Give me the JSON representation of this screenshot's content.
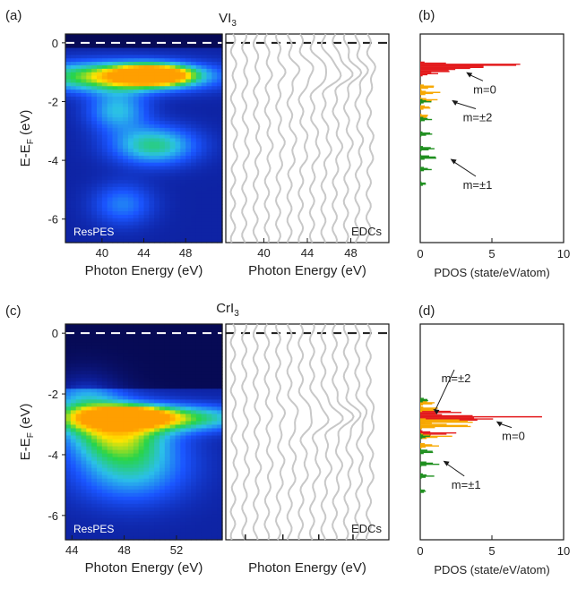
{
  "figure": {
    "colors": {
      "axis": "#1a1a1a",
      "edc": "#c8c8c8",
      "ef_dashes": "#ffffff",
      "m0": "#e31a1c",
      "m2": "#f7a800",
      "m1": "#1e8f1e"
    },
    "colormap": [
      "#070a55",
      "#0d1f9c",
      "#1a55ff",
      "#2bc0e8",
      "#27d44a",
      "#ffe400",
      "#ff9f00"
    ]
  },
  "chart_data": [
    {
      "id": "a",
      "panel_label": "(a)",
      "type": "heatmap",
      "title": "VI",
      "title_sub": "3",
      "inset_label": "ResPES",
      "xlabel": "Photon Energy (eV)",
      "ylabel": "E-E",
      "ylabel_sub": "F",
      "ylabel_unit": " (eV)",
      "xlim": [
        36.5,
        51.5
      ],
      "ylim": [
        -6.8,
        0.3
      ],
      "xticks": [
        40,
        44,
        48
      ],
      "yticks": [
        0,
        -2,
        -4,
        -6
      ],
      "fermi_level": 0,
      "features": [
        {
          "center": [
            44.8,
            -1.1
          ],
          "peak": 1.0,
          "width": [
            2.4,
            0.22
          ]
        },
        {
          "center": [
            41.5,
            -1.15
          ],
          "peak": 0.62,
          "width": [
            6,
            0.35
          ]
        },
        {
          "center": [
            45.0,
            -3.5
          ],
          "peak": 0.42,
          "width": [
            2.8,
            0.45
          ]
        },
        {
          "center": [
            41.5,
            -2.3
          ],
          "peak": 0.32,
          "width": [
            2,
            0.5
          ]
        },
        {
          "center": [
            42.0,
            -5.5
          ],
          "peak": 0.22,
          "width": [
            2,
            0.5
          ]
        }
      ]
    },
    {
      "id": "a-edc",
      "type": "line",
      "inset_label": "EDCs",
      "xlabel": "Photon Energy (eV)",
      "xticks": [
        40,
        44,
        48
      ],
      "xlim": [
        36.5,
        51.5
      ],
      "ylim": [
        -6.8,
        0.3
      ],
      "curve_count": 13,
      "peaks": [
        -1.0,
        -3.5
      ]
    },
    {
      "id": "b",
      "panel_label": "(b)",
      "type": "line",
      "xlabel": "PDOS (state/eV/atom)",
      "xlim": [
        0,
        10
      ],
      "ylim": [
        -6.8,
        0.3
      ],
      "xticks": [
        0,
        5,
        10
      ],
      "series": [
        {
          "name": "m=0",
          "color": "#e31a1c",
          "peaks": [
            {
              "e": -0.75,
              "v": 8.6
            },
            {
              "e": -0.85,
              "v": 4.8
            },
            {
              "e": -0.95,
              "v": 2.6
            },
            {
              "e": -1.05,
              "v": 1.2
            }
          ]
        },
        {
          "name": "m=±2",
          "color": "#f7a800",
          "peaks": [
            {
              "e": -1.5,
              "v": 1.3
            },
            {
              "e": -1.7,
              "v": 1.5
            },
            {
              "e": -1.95,
              "v": 1.35
            },
            {
              "e": -2.2,
              "v": 0.9
            },
            {
              "e": -2.5,
              "v": 0.8
            }
          ]
        },
        {
          "name": "m=±1",
          "color": "#1e8f1e",
          "peaks": [
            {
              "e": -2.0,
              "v": 0.8
            },
            {
              "e": -2.6,
              "v": 0.9
            },
            {
              "e": -3.1,
              "v": 1.0
            },
            {
              "e": -3.6,
              "v": 1.2
            },
            {
              "e": -3.9,
              "v": 1.5
            },
            {
              "e": -4.3,
              "v": 0.9
            },
            {
              "e": -4.8,
              "v": 0.5
            }
          ]
        }
      ],
      "annotations": [
        {
          "text": "m=0",
          "e": -1.6,
          "v": 4.5,
          "target_e": -1.0,
          "target_v": 3.2
        },
        {
          "text": "m=±2",
          "e": -2.55,
          "v": 4.0,
          "target_e": -1.95,
          "target_v": 2.2
        },
        {
          "text": "m=±1",
          "e": -4.85,
          "v": 4.0,
          "target_e": -3.95,
          "target_v": 2.1
        }
      ]
    },
    {
      "id": "c",
      "panel_label": "(c)",
      "type": "heatmap",
      "title": "CrI",
      "title_sub": "3",
      "inset_label": "ResPES",
      "xlabel": "Photon Energy (eV)",
      "ylabel": "E-E",
      "ylabel_sub": "F",
      "ylabel_unit": " (eV)",
      "xlim": [
        43.5,
        55.5
      ],
      "ylim": [
        -6.8,
        0.3
      ],
      "xticks": [
        44,
        48,
        52
      ],
      "yticks": [
        0,
        -2,
        -4,
        -6
      ],
      "fermi_level": 0,
      "features": [
        {
          "center": [
            48.2,
            -2.75
          ],
          "peak": 1.0,
          "width": [
            1.7,
            0.18
          ]
        },
        {
          "center": [
            50.0,
            -2.8
          ],
          "peak": 0.6,
          "width": [
            5,
            0.3
          ]
        },
        {
          "center": [
            47.5,
            -3.3
          ],
          "peak": 0.45,
          "width": [
            2.5,
            0.6
          ]
        },
        {
          "center": [
            48.5,
            -4.4
          ],
          "peak": 0.35,
          "width": [
            3,
            0.8
          ]
        },
        {
          "center": [
            45.0,
            -2.3
          ],
          "peak": 0.28,
          "width": [
            2,
            0.7
          ]
        }
      ]
    },
    {
      "id": "c-edc",
      "type": "line",
      "inset_label": "EDCs",
      "xlabel": "Photon Energy (eV)",
      "xlim": [
        43.5,
        55.5
      ],
      "ylim": [
        -6.8,
        0.3
      ],
      "curve_count": 13,
      "peaks": [
        -2.75,
        -4.4
      ]
    },
    {
      "id": "d",
      "panel_label": "(d)",
      "type": "line",
      "xlabel": "PDOS (state/eV/atom)",
      "xlim": [
        0,
        10
      ],
      "ylim": [
        -6.8,
        0.3
      ],
      "xticks": [
        0,
        5,
        10
      ],
      "series": [
        {
          "name": "m=0",
          "color": "#e31a1c",
          "peaks": [
            {
              "e": -2.75,
              "v": 8.4
            },
            {
              "e": -2.85,
              "v": 5.5
            },
            {
              "e": -2.6,
              "v": 3.2
            },
            {
              "e": -3.3,
              "v": 2.8
            }
          ]
        },
        {
          "name": "m=±2",
          "color": "#f7a800",
          "peaks": [
            {
              "e": -2.3,
              "v": 1.2
            },
            {
              "e": -2.5,
              "v": 1.8
            },
            {
              "e": -2.9,
              "v": 5.3
            },
            {
              "e": -3.05,
              "v": 4.6
            },
            {
              "e": -3.4,
              "v": 2.3
            },
            {
              "e": -3.7,
              "v": 1.4
            }
          ]
        },
        {
          "name": "m=±1",
          "color": "#1e8f1e",
          "peaks": [
            {
              "e": -2.2,
              "v": 0.7
            },
            {
              "e": -3.4,
              "v": 0.7
            },
            {
              "e": -3.9,
              "v": 1.2
            },
            {
              "e": -4.3,
              "v": 1.5
            },
            {
              "e": -4.7,
              "v": 1.0
            },
            {
              "e": -5.2,
              "v": 0.5
            }
          ]
        }
      ],
      "annotations": [
        {
          "text": "m=±2",
          "e": -1.5,
          "v": 2.5,
          "target_e": -2.5,
          "target_v": 0.9
        },
        {
          "text": "m=0",
          "e": -3.4,
          "v": 6.5,
          "target_e": -2.9,
          "target_v": 5.3
        },
        {
          "text": "m=±1",
          "e": -5.0,
          "v": 3.2,
          "target_e": -4.2,
          "target_v": 1.6
        }
      ]
    }
  ]
}
